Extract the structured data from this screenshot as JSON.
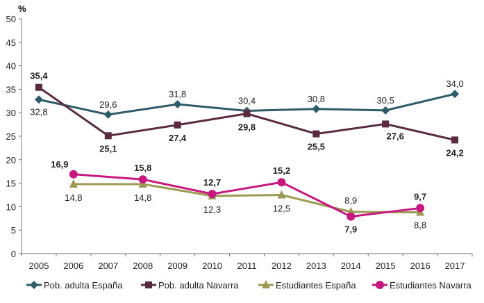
{
  "chart_data": {
    "type": "line",
    "ylabel": "%",
    "ylim": [
      0,
      50
    ],
    "yticks": [
      0,
      5,
      10,
      15,
      20,
      25,
      30,
      35,
      40,
      45,
      50
    ],
    "categories": [
      "2005",
      "2006",
      "2007",
      "2008",
      "2009",
      "2010",
      "2011",
      "2012",
      "2013",
      "2014",
      "2015",
      "2016",
      "2017"
    ],
    "grid": false,
    "legend": "bottom",
    "series": [
      {
        "name": "Pob. adulta España",
        "color": "#2d5b68",
        "marker": "diamond",
        "points": [
          [
            "2005",
            32.8
          ],
          [
            "2007",
            29.6
          ],
          [
            "2009",
            31.8
          ],
          [
            "2011",
            30.4
          ],
          [
            "2013",
            30.8
          ],
          [
            "2015",
            30.5
          ],
          [
            "2017",
            34.0
          ]
        ],
        "labels": [
          "32,8",
          "29,6",
          "31,8",
          "30,4",
          "30,8",
          "30,5",
          "34,0"
        ]
      },
      {
        "name": "Pob. adulta Navarra",
        "color": "#5a2a3e",
        "marker": "square",
        "points": [
          [
            "2005",
            35.4
          ],
          [
            "2007",
            25.1
          ],
          [
            "2009",
            27.4
          ],
          [
            "2011",
            29.8
          ],
          [
            "2013",
            25.5
          ],
          [
            "2015",
            27.6
          ],
          [
            "2017",
            24.2
          ]
        ],
        "labels": [
          "35,4",
          "25,1",
          "27,4",
          "29,8",
          "25,5",
          "27,6",
          "24,2"
        ]
      },
      {
        "name": "Estudiantes España",
        "color": "#9c9a52",
        "marker": "triangle",
        "points": [
          [
            "2006",
            14.8
          ],
          [
            "2008",
            14.8
          ],
          [
            "2010",
            12.3
          ],
          [
            "2012",
            12.5
          ],
          [
            "2014",
            8.9
          ],
          [
            "2016",
            8.8
          ]
        ],
        "labels": [
          "14,8",
          "14,8",
          "12,3",
          "12,5",
          "8,9",
          "8,8"
        ]
      },
      {
        "name": "Estudiantes Navarra",
        "color": "#c8187f",
        "marker": "circle",
        "points": [
          [
            "2006",
            16.9
          ],
          [
            "2008",
            15.8
          ],
          [
            "2010",
            12.7
          ],
          [
            "2012",
            15.2
          ],
          [
            "2014",
            7.9
          ],
          [
            "2016",
            9.7
          ]
        ],
        "labels": [
          "16,9",
          "15,8",
          "12,7",
          "15,2",
          "7,9",
          "9,7"
        ]
      }
    ]
  }
}
